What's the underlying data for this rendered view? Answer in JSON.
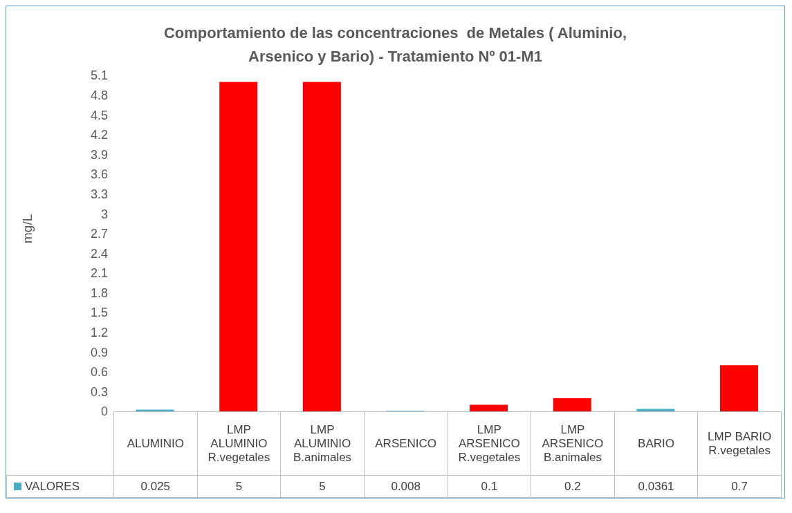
{
  "chart_data": {
    "type": "bar",
    "title": "Comportamiento de las concentraciones  de Metales ( Aluminio, Arsenico y Bario) - Tratamiento Nº 01-M1",
    "ylabel": "mg/L",
    "categories": [
      "ALUMINIO",
      "LMP ALUMINIO R.vegetales",
      "LMP ALUMINIO B.animales",
      "ARSENICO",
      "LMP ARSENICO R.vegetales",
      "LMP ARSENICO B.animales",
      "BARIO",
      "LMP BARIO R.vegetales"
    ],
    "series": [
      {
        "name": "VALORES",
        "color": "#4bacc6",
        "colors": [
          "#4bacc6",
          "#ff0000",
          "#ff0000",
          "#4bacc6",
          "#ff0000",
          "#ff0000",
          "#4bacc6",
          "#ff0000"
        ],
        "values": [
          0.025,
          5,
          5,
          0.008,
          0.1,
          0.2,
          0.0361,
          0.7
        ]
      }
    ],
    "ylim": [
      0,
      5.1
    ],
    "yticks": [
      0,
      0.3,
      0.6,
      0.9,
      1.2,
      1.5,
      1.8,
      2.1,
      2.4,
      2.7,
      3,
      3.3,
      3.6,
      3.9,
      4.2,
      4.5,
      4.8,
      5.1
    ],
    "grid": false,
    "legend": "bottom",
    "data_labels": true
  }
}
